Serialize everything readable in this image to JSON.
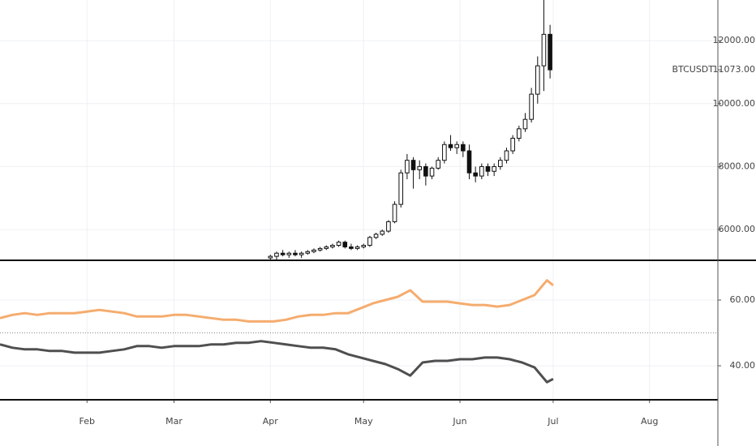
{
  "chart_data": [
    {
      "type": "candlestick",
      "series": [
        {
          "name": "BTCUSDT",
          "color": "#111111",
          "last_label": "11073.00",
          "x": [
            90,
            92,
            94,
            96,
            98,
            100,
            102,
            104,
            106,
            108,
            110,
            112,
            114,
            116,
            118,
            120,
            122,
            124,
            126,
            128,
            130,
            132,
            134,
            136,
            138,
            140,
            142,
            144,
            146,
            148,
            150,
            152,
            154,
            156,
            158,
            160,
            162,
            164,
            166,
            168,
            170,
            172,
            174,
            176,
            178,
            180
          ],
          "open": [
            5100,
            5150,
            5250,
            5200,
            5250,
            5200,
            5250,
            5300,
            5350,
            5400,
            5450,
            5500,
            5600,
            5450,
            5400,
            5450,
            5500,
            5750,
            5850,
            5950,
            6250,
            6800,
            7800,
            8200,
            7900,
            8000,
            7700,
            7950,
            8200,
            8700,
            8600,
            8700,
            8500,
            7800,
            7700,
            8000,
            7850,
            8000,
            8200,
            8500,
            8900,
            9200,
            9500,
            10300,
            11200,
            12200
          ],
          "high": [
            5200,
            5300,
            5350,
            5300,
            5350,
            5300,
            5350,
            5400,
            5450,
            5500,
            5550,
            5650,
            5650,
            5550,
            5500,
            5550,
            5800,
            5900,
            6000,
            6300,
            6900,
            7900,
            8400,
            8300,
            8200,
            8100,
            8000,
            8300,
            8800,
            9000,
            8800,
            8800,
            8700,
            8000,
            8100,
            8100,
            8100,
            8300,
            8600,
            9000,
            9300,
            9700,
            10500,
            11500,
            13300,
            12500
          ],
          "low": [
            5000,
            5050,
            5150,
            5100,
            5150,
            5100,
            5200,
            5250,
            5300,
            5350,
            5400,
            5450,
            5400,
            5350,
            5350,
            5400,
            5450,
            5700,
            5800,
            5900,
            6200,
            6700,
            7600,
            7300,
            7600,
            7400,
            7600,
            7900,
            8100,
            8500,
            8400,
            8300,
            7600,
            7500,
            7600,
            7700,
            7700,
            7900,
            8100,
            8400,
            8800,
            9100,
            9400,
            10000,
            10400,
            10800
          ],
          "close": [
            5150,
            5250,
            5200,
            5250,
            5200,
            5250,
            5300,
            5350,
            5400,
            5450,
            5500,
            5600,
            5450,
            5400,
            5450,
            5500,
            5750,
            5850,
            5950,
            6250,
            6800,
            7800,
            8200,
            7900,
            8000,
            7700,
            7950,
            8200,
            8700,
            8600,
            8700,
            8500,
            7800,
            7700,
            8000,
            7850,
            8000,
            8200,
            8500,
            8900,
            9200,
            9500,
            10300,
            11200,
            12200,
            11073
          ]
        }
      ],
      "xlim": [
        3,
        234
      ],
      "ylim": [
        5050,
        13290
      ],
      "yticks": [
        {
          "value": 6000,
          "label": "6000.00"
        },
        {
          "value": 8000,
          "label": "8000.00"
        },
        {
          "value": 10000,
          "label": "10000.00"
        },
        {
          "value": 12000,
          "label": "12000.00"
        }
      ],
      "grid": true
    },
    {
      "type": "line",
      "x": [
        3,
        7,
        11,
        15,
        19,
        23,
        27,
        31,
        35,
        39,
        43,
        47,
        51,
        55,
        59,
        63,
        67,
        71,
        75,
        79,
        83,
        87,
        91,
        95,
        99,
        103,
        107,
        111,
        115,
        119,
        123,
        127,
        131,
        135,
        139,
        143,
        147,
        151,
        155,
        159,
        163,
        167,
        171,
        175,
        179,
        181
      ],
      "series": [
        {
          "color": "#f4a35e",
          "values": [
            54.5,
            55.5,
            56,
            55.5,
            56,
            56,
            56,
            56.5,
            57,
            56.5,
            56,
            55,
            55,
            55,
            55.5,
            55.5,
            55,
            54.5,
            54,
            54,
            53.5,
            53.5,
            53.5,
            54,
            55,
            55.5,
            55.5,
            56,
            56,
            57.5,
            59,
            60,
            61,
            63,
            59.5,
            59.5,
            59.5,
            59,
            58.5,
            58.5,
            58,
            58.5,
            60,
            61.5,
            66,
            64.5
          ]
        },
        {
          "color": "#3c3c3c",
          "values": [
            46.5,
            45.5,
            45,
            45,
            44.5,
            44.5,
            44,
            44,
            44,
            44.5,
            45,
            46,
            46,
            45.5,
            46,
            46,
            46,
            46.5,
            46.5,
            47,
            47,
            47.5,
            47,
            46.5,
            46,
            45.5,
            45.5,
            45,
            43.5,
            42.5,
            41.5,
            40.5,
            39,
            37,
            41,
            41.5,
            41.5,
            42,
            42,
            42.5,
            42.5,
            42,
            41,
            39.5,
            35,
            36
          ]
        }
      ],
      "hline": 50,
      "xlim": [
        3,
        234
      ],
      "xticks": [
        {
          "value": 31,
          "label": "Feb"
        },
        {
          "value": 59,
          "label": "Mar"
        },
        {
          "value": 90,
          "label": "Apr"
        },
        {
          "value": 120,
          "label": "May"
        },
        {
          "value": 151,
          "label": "Jun"
        },
        {
          "value": 181,
          "label": "Jul"
        },
        {
          "value": 212,
          "label": "Aug"
        }
      ],
      "ylim": [
        29.9,
        71.85
      ],
      "yticks": [
        {
          "value": 40,
          "label": "40.00"
        },
        {
          "value": 60,
          "label": "60.00"
        }
      ],
      "grid": true
    }
  ]
}
